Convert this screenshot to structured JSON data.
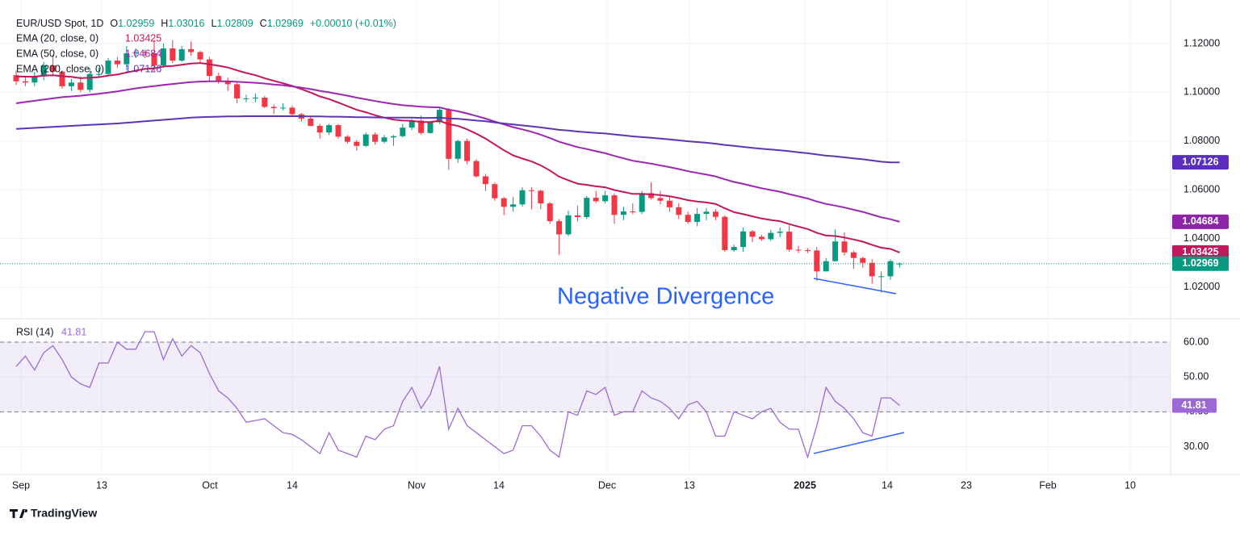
{
  "header": {
    "symbol": "EUR/USD Spot, 1D",
    "ohlc": [
      {
        "key": "O",
        "value": "1.02959"
      },
      {
        "key": "H",
        "value": "1.03016"
      },
      {
        "key": "L",
        "value": "1.02809"
      },
      {
        "key": "C",
        "value": "1.02969"
      }
    ],
    "change": "+0.00010 (+0.01%)"
  },
  "chart_data": [
    {
      "type": "candlestick",
      "up_color": "#089981",
      "down_color": "#f23645",
      "ylim": [
        1.0074,
        1.1339
      ],
      "yticks": [
        {
          "value": 1.02,
          "label": "1.02000"
        },
        {
          "value": 1.04,
          "label": "1.04000"
        },
        {
          "value": 1.06,
          "label": "1.06000"
        },
        {
          "value": 1.08,
          "label": "1.08000"
        },
        {
          "value": 1.1,
          "label": "1.10000"
        },
        {
          "value": 1.12,
          "label": "1.12000"
        }
      ],
      "xticks": [
        "Sep",
        "13",
        "Oct",
        "14",
        "Nov",
        "14",
        "Dec",
        "13",
        "2025",
        "14",
        "23",
        "Feb",
        "10"
      ],
      "grid": true,
      "last_label": "1.02969",
      "annotation": "Negative Divergence",
      "open": [
        1.107,
        1.1045,
        1.104,
        1.1065,
        1.111,
        1.1085,
        1.1025,
        1.104,
        1.101,
        1.1075,
        1.1075,
        1.113,
        1.1115,
        1.116,
        1.1164,
        1.116,
        1.111,
        1.118,
        1.113,
        1.1177,
        1.1165,
        1.1135,
        1.1067,
        1.1045,
        1.1033,
        1.0975,
        1.0975,
        1.0978,
        1.094,
        1.0935,
        1.0937,
        1.091,
        1.0892,
        1.0862,
        1.0835,
        1.0865,
        1.0818,
        1.0797,
        1.078,
        1.0827,
        1.0797,
        1.0815,
        1.082,
        1.0855,
        1.0884,
        1.0833,
        1.0877,
        1.0928,
        1.0727,
        1.08,
        1.0718,
        1.0655,
        1.0623,
        1.0565,
        1.053,
        1.054,
        1.0598,
        1.0596,
        1.0544,
        1.0471,
        1.0417,
        1.0495,
        1.0488,
        1.0567,
        1.0553,
        1.0577,
        1.0497,
        1.0511,
        1.0509,
        1.0586,
        1.0566,
        1.0555,
        1.0528,
        1.0497,
        1.0468,
        1.0501,
        1.051,
        1.0489,
        1.0352,
        1.0365,
        1.0429,
        1.0407,
        1.0397,
        1.0423,
        1.0428,
        1.0354,
        1.0352,
        1.0351,
        1.0265,
        1.0307,
        1.0388,
        1.0343,
        1.032,
        1.03,
        1.0245,
        1.0245,
        1.02959
      ],
      "high": [
        1.109,
        1.1065,
        1.1085,
        1.1125,
        1.1155,
        1.109,
        1.1055,
        1.1065,
        1.11,
        1.11,
        1.114,
        1.1145,
        1.119,
        1.118,
        1.1175,
        1.1215,
        1.12,
        1.1214,
        1.119,
        1.1209,
        1.117,
        1.1145,
        1.108,
        1.106,
        1.104,
        1.099,
        1.0995,
        1.0985,
        1.095,
        1.0955,
        1.0945,
        1.0915,
        1.09,
        1.087,
        1.087,
        1.087,
        1.0825,
        1.0805,
        1.0835,
        1.0835,
        1.0825,
        1.0825,
        1.087,
        1.089,
        1.0905,
        1.088,
        1.0937,
        1.0935,
        1.0805,
        1.081,
        1.0725,
        1.0665,
        1.063,
        1.057,
        1.057,
        1.061,
        1.061,
        1.06,
        1.055,
        1.048,
        1.0515,
        1.0535,
        1.0575,
        1.0595,
        1.0595,
        1.0585,
        1.053,
        1.0545,
        1.0595,
        1.063,
        1.0595,
        1.0575,
        1.0545,
        1.051,
        1.0525,
        1.0525,
        1.052,
        1.0495,
        1.0375,
        1.0445,
        1.0435,
        1.0415,
        1.0435,
        1.0445,
        1.0455,
        1.037,
        1.036,
        1.0365,
        1.032,
        1.0437,
        1.0425,
        1.035,
        1.0325,
        1.0315,
        1.0265,
        1.0315,
        1.03016
      ],
      "low": [
        1.103,
        1.1025,
        1.1025,
        1.105,
        1.1065,
        1.1015,
        1.1005,
        1.1,
        1.1,
        1.106,
        1.107,
        1.11,
        1.109,
        1.114,
        1.114,
        1.1085,
        1.11,
        1.112,
        1.1125,
        1.115,
        1.112,
        1.1045,
        1.1035,
        1.1005,
        1.0955,
        1.096,
        1.096,
        1.0935,
        1.091,
        1.0925,
        1.09,
        1.088,
        1.086,
        1.081,
        1.0825,
        1.081,
        1.079,
        1.076,
        1.0775,
        1.0785,
        1.079,
        1.078,
        1.0815,
        1.0845,
        1.0825,
        1.083,
        1.087,
        1.0682,
        1.071,
        1.0705,
        1.065,
        1.0595,
        1.0555,
        1.0495,
        1.051,
        1.053,
        1.052,
        1.052,
        1.046,
        1.0333,
        1.041,
        1.047,
        1.048,
        1.0545,
        1.0545,
        1.046,
        1.0475,
        1.05,
        1.05,
        1.056,
        1.054,
        1.051,
        1.048,
        1.046,
        1.045,
        1.0475,
        1.0475,
        1.0345,
        1.0345,
        1.0345,
        1.0385,
        1.039,
        1.039,
        1.0405,
        1.0345,
        1.034,
        1.034,
        1.0226,
        1.0265,
        1.0305,
        1.033,
        1.0275,
        1.028,
        1.0215,
        1.0178,
        1.023,
        1.02809
      ],
      "close": [
        1.1045,
        1.104,
        1.1065,
        1.111,
        1.1085,
        1.1025,
        1.104,
        1.101,
        1.1075,
        1.1075,
        1.113,
        1.1115,
        1.116,
        1.1164,
        1.116,
        1.111,
        1.118,
        1.113,
        1.1177,
        1.1165,
        1.1135,
        1.1067,
        1.1045,
        1.1033,
        1.0975,
        1.0975,
        1.0978,
        1.094,
        1.0935,
        1.0937,
        1.091,
        1.0892,
        1.0862,
        1.0835,
        1.0865,
        1.0818,
        1.0797,
        1.078,
        1.0827,
        1.0797,
        1.0815,
        1.082,
        1.0855,
        1.0884,
        1.0833,
        1.0877,
        1.0928,
        1.0727,
        1.08,
        1.0718,
        1.0655,
        1.0623,
        1.0565,
        1.053,
        1.054,
        1.0598,
        1.0596,
        1.0544,
        1.0471,
        1.0417,
        1.0495,
        1.0488,
        1.0567,
        1.0553,
        1.0577,
        1.0497,
        1.0511,
        1.0509,
        1.0586,
        1.0566,
        1.0555,
        1.0528,
        1.0497,
        1.0468,
        1.0501,
        1.051,
        1.0489,
        1.0352,
        1.0365,
        1.0429,
        1.0407,
        1.0397,
        1.0423,
        1.0428,
        1.0354,
        1.0352,
        1.0351,
        1.0265,
        1.0307,
        1.0388,
        1.0343,
        1.032,
        1.03,
        1.0245,
        1.0245,
        1.0307,
        1.02969
      ],
      "series": [
        {
          "name": "EMA (20, close, 0)",
          "color": "#c2185b",
          "box_color": "#c2185b",
          "last_label": "1.03425",
          "values": [
            1.1065,
            1.1064,
            1.1064,
            1.1068,
            1.107,
            1.1066,
            1.1063,
            1.1058,
            1.106,
            1.1062,
            1.1068,
            1.1073,
            1.1081,
            1.1089,
            1.1096,
            1.1098,
            1.1106,
            1.1108,
            1.1113,
            1.1118,
            1.112,
            1.1115,
            1.1109,
            1.1102,
            1.109,
            1.1079,
            1.107,
            1.1058,
            1.1047,
            1.1037,
            1.1026,
            1.1013,
            1.0999,
            1.0983,
            1.0972,
            1.0958,
            1.0943,
            1.0928,
            1.0918,
            1.0906,
            1.0896,
            1.0888,
            1.0884,
            1.0883,
            1.0878,
            1.0878,
            1.0883,
            1.0869,
            1.0862,
            1.0848,
            1.083,
            1.081,
            1.0786,
            1.0762,
            1.0741,
            1.0728,
            1.0716,
            1.07,
            1.0679,
            1.0654,
            1.0639,
            1.0625,
            1.062,
            1.0614,
            1.061,
            1.0599,
            1.0591,
            1.0583,
            1.0583,
            1.0581,
            1.0578,
            1.0573,
            1.0566,
            1.0557,
            1.0552,
            1.0548,
            1.0542,
            1.0524,
            1.0508,
            1.05,
            1.0491,
            1.0482,
            1.0476,
            1.0471,
            1.0459,
            1.0449,
            1.0439,
            1.0423,
            1.0412,
            1.041,
            1.0404,
            1.0396,
            1.0387,
            1.0374,
            1.0362,
            1.0357,
            1.03425
          ]
        },
        {
          "name": "EMA (50, close, 0)",
          "color": "#9c27b0",
          "box_color": "#8e24aa",
          "last_label": "1.04684",
          "values": [
            1.0955,
            1.096,
            1.0965,
            1.097,
            1.0975,
            1.098,
            1.0983,
            1.0986,
            1.099,
            1.0994,
            1.0999,
            1.1004,
            1.101,
            1.1016,
            1.1021,
            1.1025,
            1.103,
            1.1034,
            1.1038,
            1.1042,
            1.1044,
            1.1045,
            1.1045,
            1.1045,
            1.1043,
            1.1041,
            1.1039,
            1.1036,
            1.1032,
            1.1029,
            1.1024,
            1.1019,
            1.1013,
            1.1006,
            1.1,
            1.0993,
            1.0986,
            1.0978,
            1.0971,
            1.0964,
            1.0958,
            1.0952,
            1.0947,
            1.0944,
            1.0941,
            1.0939,
            1.0938,
            1.0929,
            1.0922,
            1.0913,
            1.0903,
            1.0892,
            1.088,
            1.0868,
            1.0857,
            1.0848,
            1.0838,
            1.0826,
            1.0812,
            1.0797,
            1.0786,
            1.0775,
            1.0767,
            1.0758,
            1.075,
            1.0739,
            1.0729,
            1.0719,
            1.0713,
            1.0707,
            1.07,
            1.0693,
            1.0685,
            1.0676,
            1.0669,
            1.0662,
            1.0655,
            1.0643,
            1.0632,
            1.0624,
            1.0615,
            1.0606,
            1.0599,
            1.0592,
            1.0582,
            1.0573,
            1.0564,
            1.0552,
            1.0542,
            1.0535,
            1.0527,
            1.0518,
            1.0509,
            1.0498,
            1.0487,
            1.0479,
            1.04684
          ]
        },
        {
          "name": "EMA (200, close, 0)",
          "color": "#5e35b1",
          "box_color": "#5b2dbf",
          "last_label": "1.07126",
          "values": [
            1.085,
            1.0852,
            1.0854,
            1.0856,
            1.0858,
            1.086,
            1.0862,
            1.0864,
            1.0866,
            1.0868,
            1.087,
            1.0872,
            1.0875,
            1.0878,
            1.0881,
            1.0884,
            1.0887,
            1.089,
            1.0893,
            1.0896,
            1.0898,
            1.0899,
            1.09,
            1.0901,
            1.0901,
            1.0902,
            1.0902,
            1.0902,
            1.0902,
            1.0902,
            1.0902,
            1.0902,
            1.0901,
            1.0901,
            1.09,
            1.09,
            1.0899,
            1.0898,
            1.0898,
            1.0897,
            1.0896,
            1.0896,
            1.0896,
            1.0896,
            1.0895,
            1.0895,
            1.0896,
            1.0893,
            1.0891,
            1.0888,
            1.0884,
            1.0881,
            1.0876,
            1.0872,
            1.0868,
            1.0864,
            1.086,
            1.0856,
            1.0851,
            1.0846,
            1.0843,
            1.0839,
            1.0836,
            1.0833,
            1.0831,
            1.0827,
            1.0823,
            1.0819,
            1.0816,
            1.0813,
            1.081,
            1.0807,
            1.0803,
            1.0799,
            1.0796,
            1.0793,
            1.0789,
            1.0784,
            1.078,
            1.0776,
            1.0772,
            1.0768,
            1.0765,
            1.0762,
            1.0758,
            1.0754,
            1.075,
            1.0745,
            1.074,
            1.0737,
            1.0733,
            1.0729,
            1.0725,
            1.072,
            1.0715,
            1.0712,
            1.07126
          ]
        }
      ]
    },
    {
      "type": "line",
      "title": "RSI (14)",
      "color": "#9c6ad4",
      "band_color": "#7e57c2",
      "last_label": "41.81",
      "ylim": [
        22,
        66.5
      ],
      "yticks": [
        {
          "value": 30,
          "label": "30.00"
        },
        {
          "value": 40,
          "label": "40.00"
        },
        {
          "value": 50,
          "label": "50.00"
        },
        {
          "value": 60,
          "label": "60.00"
        }
      ],
      "band": [
        40,
        60
      ],
      "values": [
        53,
        56,
        52,
        57,
        59,
        55,
        50,
        48,
        47,
        54,
        54,
        60,
        58,
        58,
        63,
        63,
        55,
        61,
        56,
        59,
        57,
        51,
        46,
        44,
        41,
        37,
        37.5,
        38,
        36,
        34,
        33.5,
        32,
        30,
        28,
        34,
        29,
        28,
        27,
        33,
        32,
        35,
        36,
        43,
        47,
        41,
        45,
        53,
        35,
        41,
        36,
        34,
        32,
        30,
        28,
        29,
        36,
        36,
        33,
        29,
        27,
        40,
        39,
        46,
        45,
        47,
        39,
        40,
        40,
        46,
        44,
        43,
        41,
        38,
        42,
        43,
        40,
        33,
        33,
        40,
        39,
        38,
        40,
        41,
        37,
        35,
        35,
        27,
        36,
        47,
        43,
        41,
        38,
        34,
        33,
        44,
        44,
        41.81
      ]
    }
  ],
  "footer": {
    "brand": "TradingView"
  }
}
